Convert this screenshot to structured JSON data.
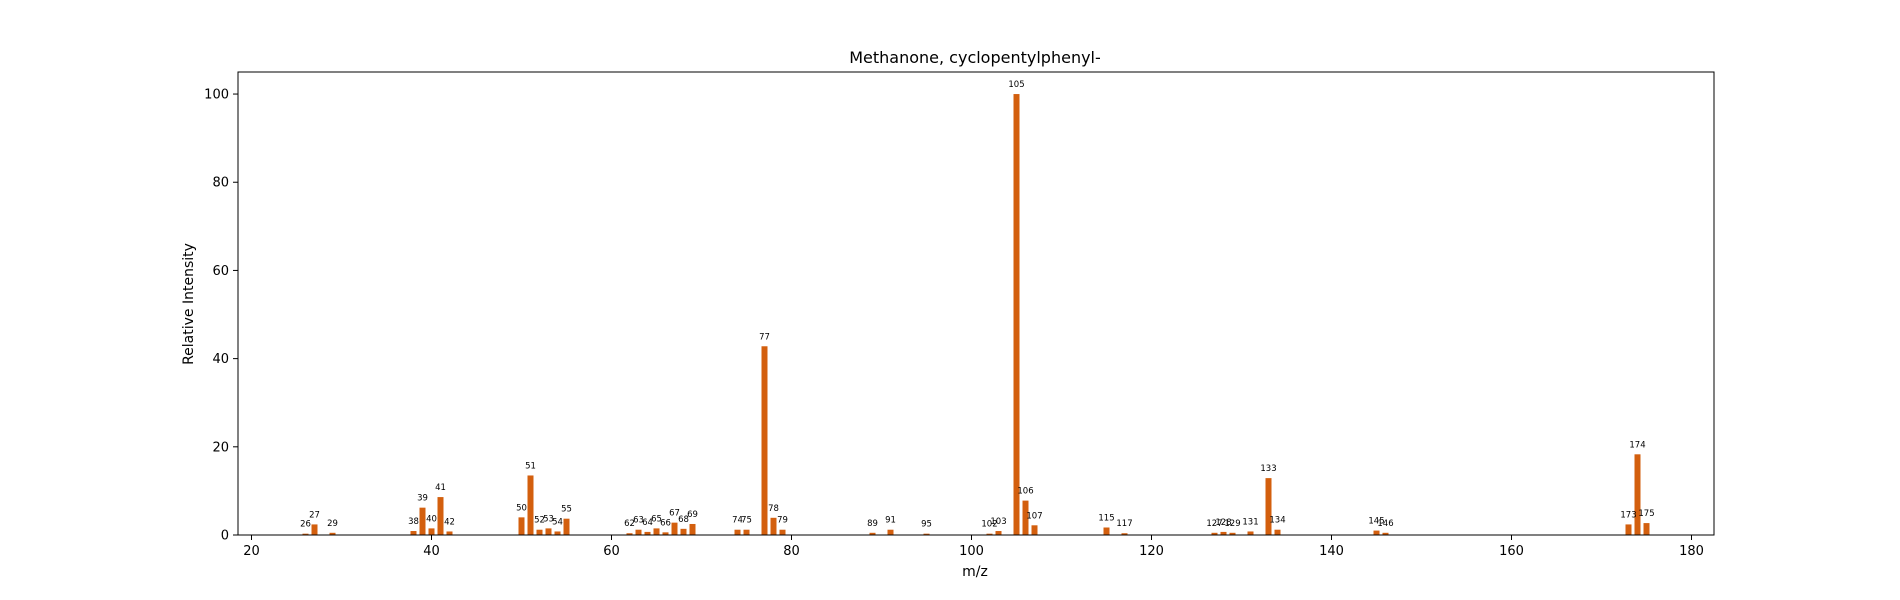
{
  "chart_data": {
    "type": "bar",
    "title": "Methanone, cyclopentylphenyl-",
    "xlabel": "m/z",
    "ylabel": "Relative Intensity",
    "xlim": [
      18.5,
      182.5
    ],
    "ylim": [
      0,
      105
    ],
    "xticks": [
      20,
      40,
      60,
      80,
      100,
      120,
      140,
      160,
      180
    ],
    "yticks": [
      0,
      20,
      40,
      60,
      80,
      100
    ],
    "grid": false,
    "bar_color": "#d35f0e",
    "x": [
      26,
      27,
      29,
      38,
      39,
      40,
      41,
      42,
      50,
      51,
      52,
      53,
      54,
      55,
      62,
      63,
      64,
      65,
      66,
      67,
      68,
      69,
      74,
      75,
      77,
      78,
      79,
      89,
      91,
      95,
      102,
      103,
      105,
      106,
      107,
      115,
      117,
      127,
      128,
      129,
      131,
      133,
      134,
      145,
      146,
      173,
      174,
      175
    ],
    "values": [
      0.3,
      2.4,
      0.5,
      0.9,
      6.2,
      1.5,
      8.6,
      0.8,
      4.0,
      13.5,
      1.2,
      1.5,
      0.8,
      3.7,
      0.4,
      1.2,
      0.7,
      1.5,
      0.6,
      2.8,
      1.4,
      2.5,
      1.2,
      1.2,
      42.8,
      3.9,
      1.2,
      0.5,
      1.2,
      0.3,
      0.3,
      0.9,
      100,
      7.8,
      2.2,
      1.7,
      0.4,
      0.5,
      0.7,
      0.5,
      0.8,
      12.9,
      1.2,
      1.0,
      0.5,
      2.4,
      18.3,
      2.7
    ],
    "labels": [
      "26",
      "27",
      "29",
      "38",
      "39",
      "40",
      "41",
      "42",
      "50",
      "51",
      "52",
      "53",
      "54",
      "55",
      "62",
      "63",
      "64",
      "65",
      "66",
      "67",
      "68",
      "69",
      "74",
      "75",
      "77",
      "78",
      "79",
      "89",
      "91",
      "95",
      "102",
      "103",
      "105",
      "106",
      "107",
      "115",
      "117",
      "127",
      "128",
      "129",
      "131",
      "133",
      "134",
      "145",
      "146",
      "173",
      "174",
      "175"
    ]
  }
}
